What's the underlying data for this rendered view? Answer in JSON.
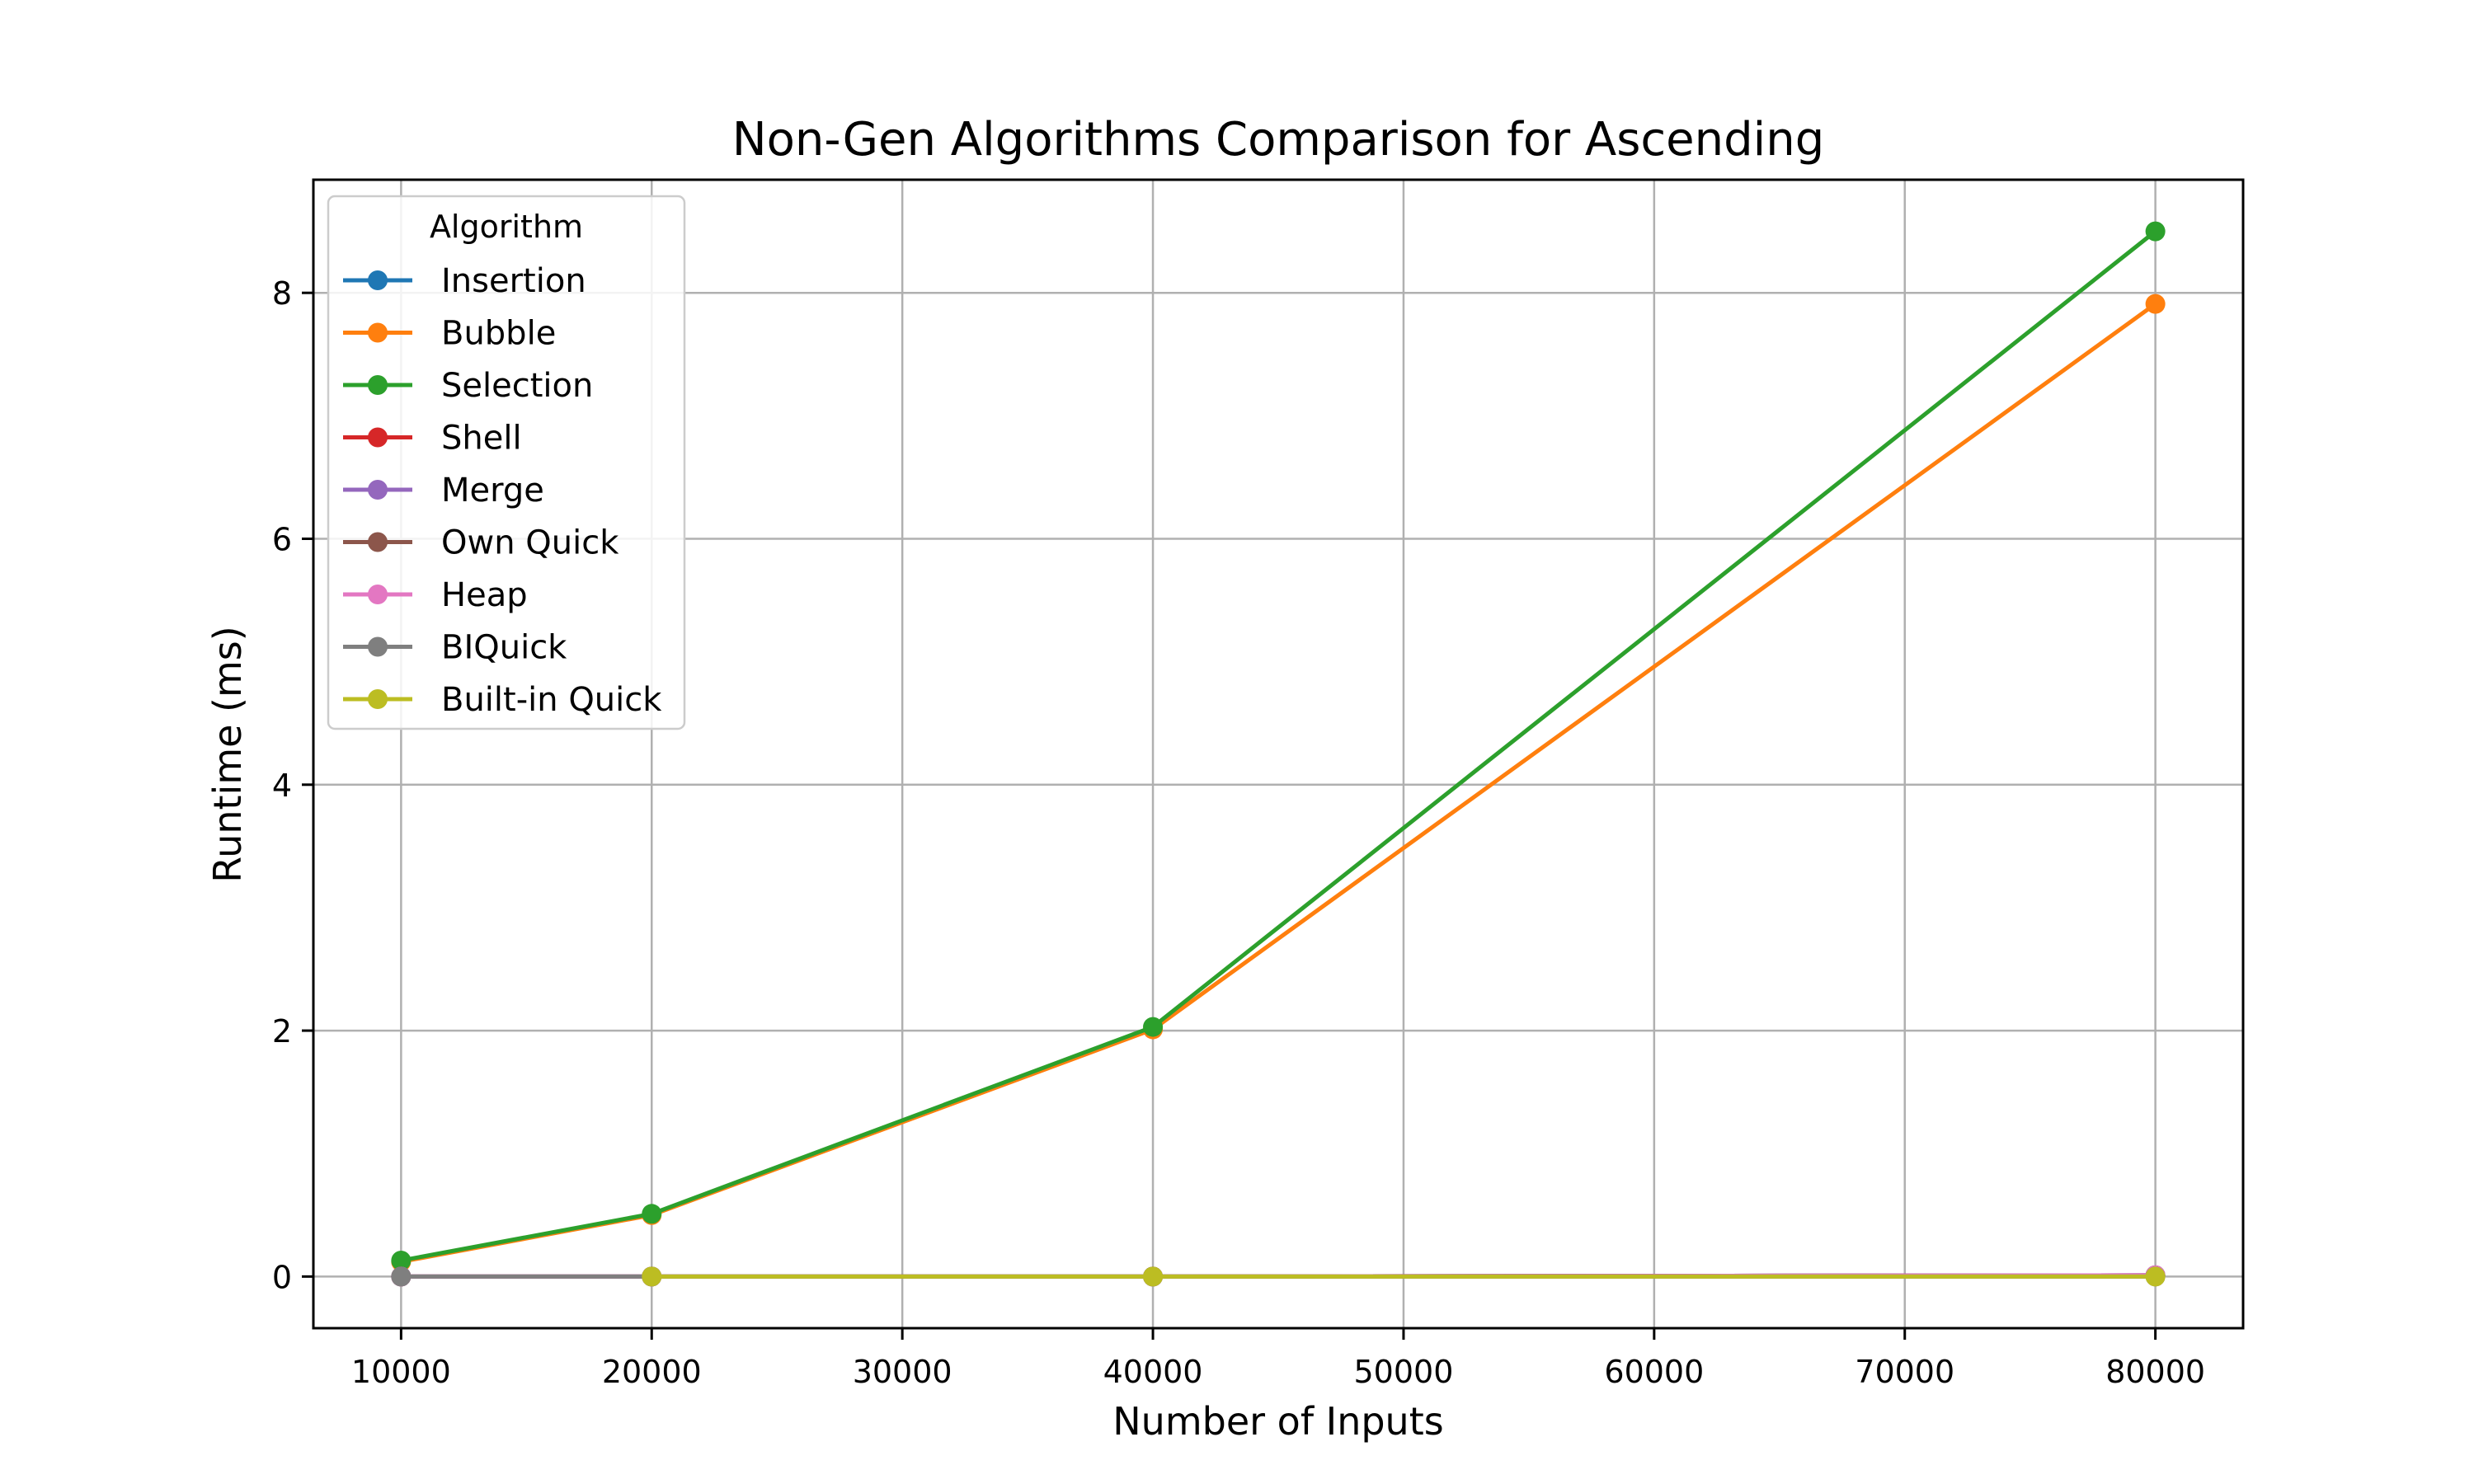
{
  "chart_data": {
    "type": "line",
    "title": "Non-Gen Algorithms Comparison for Ascending",
    "xlabel": "Number of Inputs",
    "ylabel": "Runtime (ms)",
    "xlim": [
      6500,
      83500
    ],
    "ylim": [
      -0.42,
      8.92
    ],
    "xticks": [
      10000,
      20000,
      30000,
      40000,
      50000,
      60000,
      70000,
      80000
    ],
    "yticks": [
      0,
      2,
      4,
      6,
      8
    ],
    "grid": true,
    "legend": {
      "title": "Algorithm",
      "placement": "top-left"
    },
    "x": [
      10000,
      20000,
      40000,
      80000
    ],
    "series": [
      {
        "name": "Insertion",
        "color": "#1f77b4",
        "values": [
          0.0,
          0.0,
          0.0,
          0.01
        ]
      },
      {
        "name": "Bubble",
        "color": "#ff7f0e",
        "values": [
          0.12,
          0.5,
          2.01,
          7.91
        ]
      },
      {
        "name": "Selection",
        "color": "#2ca02c",
        "values": [
          0.13,
          0.51,
          2.03,
          8.5
        ]
      },
      {
        "name": "Shell",
        "color": "#d62728",
        "values": [
          0.0,
          0.0,
          0.0,
          0.01
        ]
      },
      {
        "name": "Merge",
        "color": "#9467bd",
        "values": [
          0.0,
          0.0,
          0.0,
          0.01
        ]
      },
      {
        "name": "Own Quick",
        "color": "#8c564b",
        "values": [
          0.0,
          0.0,
          0.0,
          0.01
        ]
      },
      {
        "name": "Heap",
        "color": "#e377c2",
        "values": [
          0.0,
          0.0,
          0.0,
          0.01
        ]
      },
      {
        "name": "BIQuick",
        "color": "#7f7f7f",
        "values": [
          0.0,
          0.0,
          0.0,
          0.0
        ]
      },
      {
        "name": "Built-in Quick",
        "color": "#bcbd22",
        "values": [
          null,
          0.0,
          0.0,
          0.0
        ]
      }
    ]
  }
}
